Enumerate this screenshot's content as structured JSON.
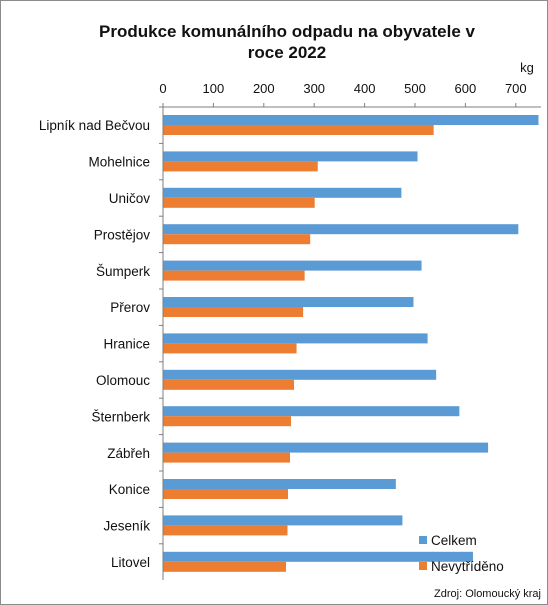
{
  "chart_data": {
    "type": "bar",
    "orientation": "horizontal",
    "title_lines": [
      "Produkce komunálního odpadu na obyvatele v",
      "roce 2022"
    ],
    "unit_label": "kg",
    "source": "Zdroj: Olomoucký kraj",
    "xlim": [
      0,
      750
    ],
    "x_ticks": [
      0,
      100,
      200,
      300,
      400,
      500,
      600,
      700
    ],
    "x_axis_position": "top",
    "grid": false,
    "legend_position": "bottom-right",
    "categories": [
      "Lipník nad Bečvou",
      "Mohelnice",
      "Uničov",
      "Prostějov",
      "Šumperk",
      "Přerov",
      "Hranice",
      "Olomouc",
      "Šternberk",
      "Zábřeh",
      "Konice",
      "Jeseník",
      "Litovel"
    ],
    "series": [
      {
        "name": "Celkem",
        "color": "#5b9bd5",
        "values": [
          745,
          505,
          473,
          705,
          513,
          497,
          525,
          542,
          588,
          645,
          462,
          475,
          615
        ]
      },
      {
        "name": "Nevytříděno",
        "color": "#ed7d31",
        "values": [
          537,
          307,
          301,
          292,
          281,
          278,
          265,
          260,
          254,
          252,
          248,
          247,
          244
        ]
      }
    ]
  }
}
